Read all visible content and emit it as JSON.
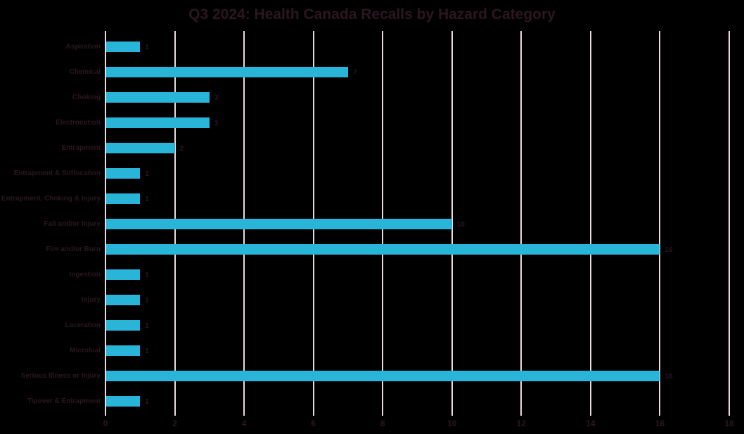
{
  "title": "Q3 2024: Health Canada Recalls by Hazard Category",
  "colors": {
    "background": "#000000",
    "bar": "#29b5d8",
    "gridline": "#e9d9e3",
    "text": "#2c1620"
  },
  "chart_data": {
    "type": "bar",
    "orientation": "horizontal",
    "title": "Q3 2024: Health Canada Recalls by Hazard Category",
    "categories": [
      "Aspiration",
      "Chemical",
      "Choking",
      "Electrocution",
      "Entrapment",
      "Entrapment & Suffocation",
      "Entrapment, Choking & Injury",
      "Fall and/or Injury",
      "Fire and/or Burn",
      "Ingestion",
      "Injury",
      "Laceration",
      "Microbial",
      "Serious Illness or Injury",
      "Tipover & Entrapment"
    ],
    "values": [
      1,
      7,
      3,
      3,
      2,
      1,
      1,
      10,
      16,
      1,
      1,
      1,
      1,
      16,
      1
    ],
    "xlabel": "",
    "ylabel": "",
    "xlim": [
      0,
      18
    ],
    "xticks": [
      0,
      2,
      4,
      6,
      8,
      10,
      12,
      14,
      16,
      18
    ],
    "grid": true,
    "legend": false,
    "data_labels": true
  }
}
